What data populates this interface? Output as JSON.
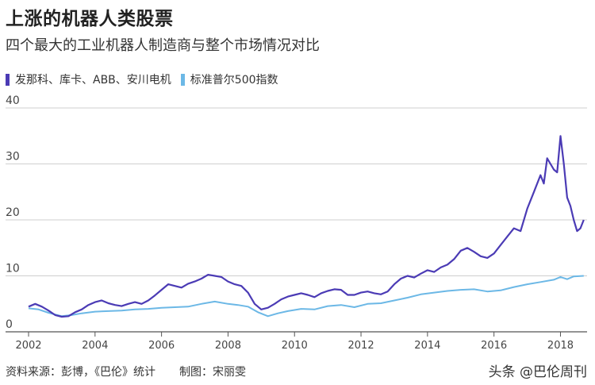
{
  "header": {
    "title": "上涨的机器人类股票",
    "subtitle": "四个最大的工业机器人制造商与整个市场情况对比"
  },
  "legend": {
    "items": [
      {
        "label": "发那科、库卡、ABB、安川电机",
        "color": "#4b3bb5"
      },
      {
        "label": "标准普尔500指数",
        "color": "#6cb8e6"
      }
    ]
  },
  "footer": {
    "source": "资料来源：彭博，《巴伦》统计",
    "maker": "制图：宋丽雯"
  },
  "watermark": {
    "text": "头条 @巴伦周刊"
  },
  "chart_data": {
    "type": "line",
    "title": "",
    "xlabel": "",
    "ylabel": "",
    "xlim": [
      2002,
      2018.8
    ],
    "ylim": [
      0,
      40
    ],
    "x_ticks": [
      "2002",
      "2004",
      "2006",
      "2008",
      "2010",
      "2012",
      "2014",
      "2016",
      "2018"
    ],
    "y_ticks": [
      "0",
      "10",
      "20",
      "30",
      "40"
    ],
    "grid": true,
    "series": [
      {
        "name": "发那科、库卡、ABB、安川电机",
        "color": "#4b3bb5",
        "x": [
          2002.0,
          2002.2,
          2002.4,
          2002.6,
          2002.8,
          2003.0,
          2003.2,
          2003.4,
          2003.6,
          2003.8,
          2004.0,
          2004.2,
          2004.4,
          2004.6,
          2004.8,
          2005.0,
          2005.2,
          2005.4,
          2005.6,
          2005.8,
          2006.0,
          2006.2,
          2006.4,
          2006.6,
          2006.8,
          2007.0,
          2007.2,
          2007.4,
          2007.6,
          2007.8,
          2008.0,
          2008.2,
          2008.4,
          2008.6,
          2008.8,
          2009.0,
          2009.2,
          2009.4,
          2009.6,
          2009.8,
          2010.0,
          2010.2,
          2010.4,
          2010.6,
          2010.8,
          2011.0,
          2011.2,
          2011.4,
          2011.6,
          2011.8,
          2012.0,
          2012.2,
          2012.4,
          2012.6,
          2012.8,
          2013.0,
          2013.2,
          2013.4,
          2013.6,
          2013.8,
          2014.0,
          2014.2,
          2014.4,
          2014.6,
          2014.8,
          2015.0,
          2015.2,
          2015.4,
          2015.6,
          2015.8,
          2016.0,
          2016.2,
          2016.4,
          2016.6,
          2016.8,
          2017.0,
          2017.2,
          2017.4,
          2017.5,
          2017.6,
          2017.7,
          2017.8,
          2017.9,
          2018.0,
          2018.1,
          2018.2,
          2018.3,
          2018.4,
          2018.5,
          2018.6,
          2018.7
        ],
        "values": [
          4.5,
          5.0,
          4.5,
          3.8,
          3.0,
          2.7,
          2.8,
          3.5,
          4.0,
          4.8,
          5.3,
          5.6,
          5.1,
          4.8,
          4.6,
          5.0,
          5.3,
          5.0,
          5.6,
          6.5,
          7.5,
          8.5,
          8.2,
          7.9,
          8.6,
          9.0,
          9.5,
          10.2,
          10.0,
          9.8,
          9.0,
          8.5,
          8.2,
          7.0,
          5.0,
          4.0,
          4.3,
          5.0,
          5.8,
          6.3,
          6.6,
          6.9,
          6.6,
          6.2,
          6.9,
          7.3,
          7.6,
          7.5,
          6.6,
          6.6,
          7.0,
          7.2,
          6.9,
          6.7,
          7.2,
          8.5,
          9.5,
          10.0,
          9.7,
          10.4,
          11.0,
          10.7,
          11.5,
          12.0,
          13.0,
          14.5,
          15.0,
          14.3,
          13.5,
          13.2,
          14.0,
          15.5,
          17.0,
          18.5,
          18.0,
          22.0,
          25.0,
          28.0,
          26.5,
          31.0,
          30.0,
          29.0,
          28.5,
          35.0,
          30.0,
          24.0,
          22.5,
          20.0,
          18.0,
          18.5,
          20.0
        ]
      },
      {
        "name": "标准普尔500指数",
        "color": "#6cb8e6",
        "x": [
          2002.0,
          2002.3,
          2002.6,
          2003.0,
          2003.3,
          2003.6,
          2004.0,
          2004.4,
          2004.8,
          2005.2,
          2005.6,
          2006.0,
          2006.4,
          2006.8,
          2007.2,
          2007.6,
          2008.0,
          2008.3,
          2008.6,
          2008.9,
          2009.2,
          2009.5,
          2009.8,
          2010.2,
          2010.6,
          2011.0,
          2011.4,
          2011.8,
          2012.2,
          2012.6,
          2013.0,
          2013.4,
          2013.8,
          2014.2,
          2014.6,
          2015.0,
          2015.4,
          2015.8,
          2016.2,
          2016.6,
          2017.0,
          2017.4,
          2017.8,
          2018.0,
          2018.2,
          2018.4,
          2018.7
        ],
        "values": [
          4.2,
          4.0,
          3.4,
          2.8,
          3.0,
          3.3,
          3.6,
          3.7,
          3.8,
          4.0,
          4.1,
          4.3,
          4.4,
          4.5,
          5.0,
          5.4,
          5.0,
          4.8,
          4.5,
          3.5,
          2.8,
          3.3,
          3.7,
          4.1,
          4.0,
          4.6,
          4.8,
          4.4,
          5.0,
          5.1,
          5.6,
          6.1,
          6.7,
          7.0,
          7.3,
          7.5,
          7.6,
          7.2,
          7.4,
          8.0,
          8.5,
          8.9,
          9.3,
          9.8,
          9.4,
          9.9,
          10.0
        ]
      }
    ]
  }
}
